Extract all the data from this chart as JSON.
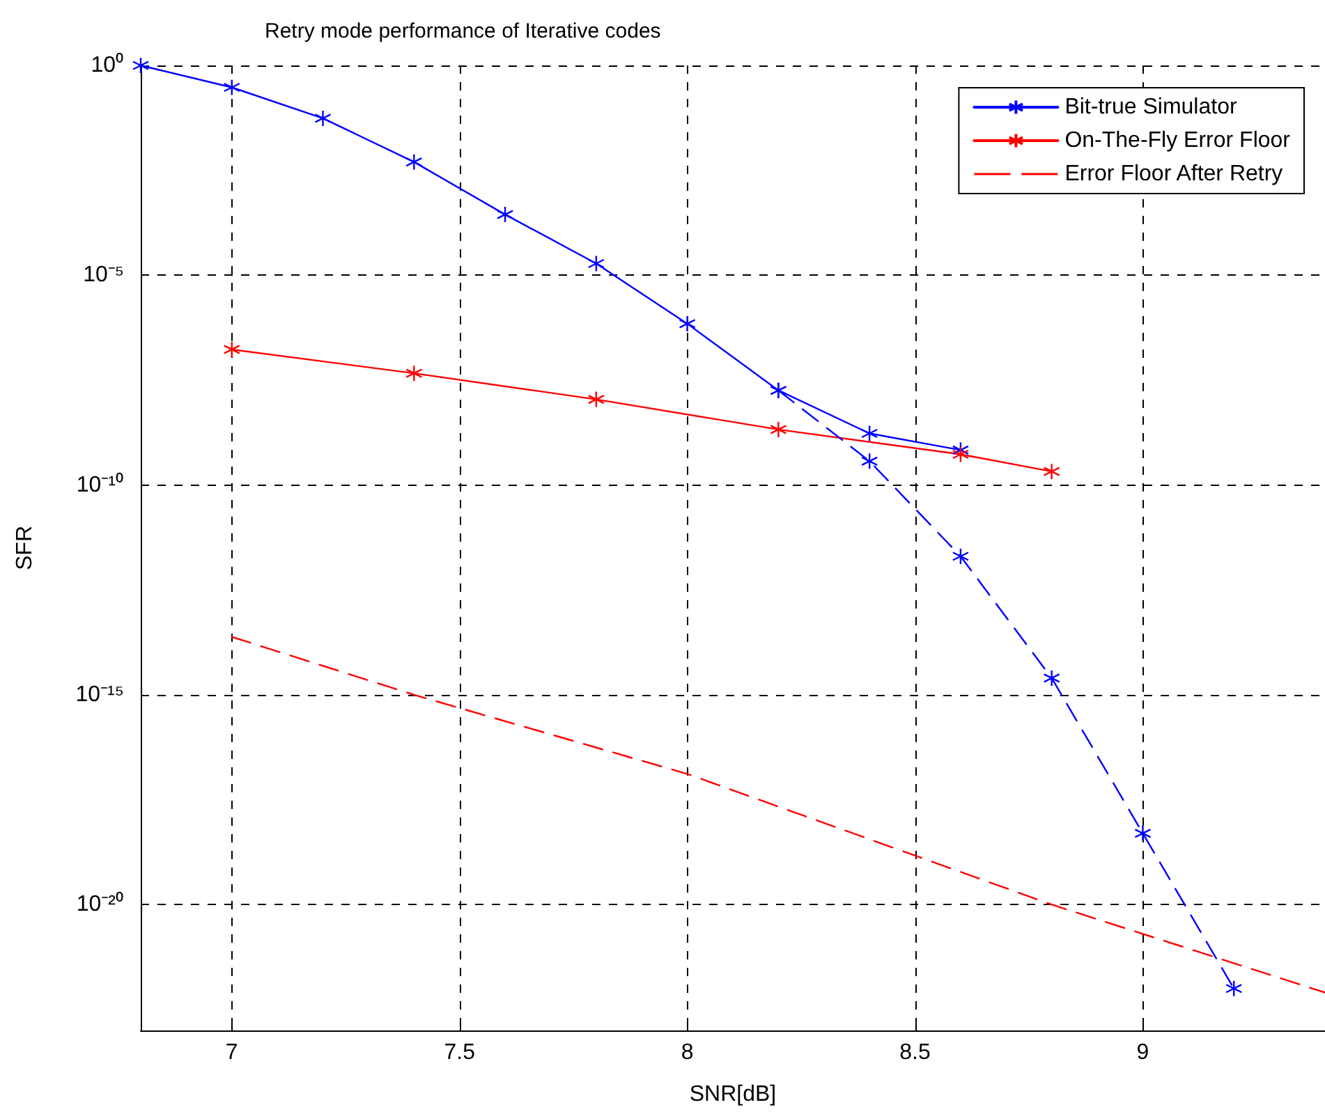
{
  "chart_data": {
    "type": "line",
    "title": "Retry mode performance of Iterative codes",
    "xlabel": "SNR[dB]",
    "ylabel": "SFR",
    "log": "y",
    "grid": true,
    "legend": "top right",
    "marker": "cross",
    "xlim": [
      6.8,
      9.4
    ],
    "xticks": [
      7,
      7.5,
      8,
      8.5,
      9
    ],
    "ylim": [
      1e-23,
      1
    ],
    "yticks": [
      {
        "value": 1,
        "label": "10⁰"
      },
      {
        "value": 1e-05,
        "label": "10⁻⁵"
      },
      {
        "value": 1e-10,
        "label": "10⁻¹⁰"
      },
      {
        "value": 1e-15,
        "label": "10⁻¹⁵"
      },
      {
        "value": 1e-20,
        "label": "10⁻²⁰"
      }
    ],
    "series": [
      {
        "name": "Bit-true Simulator",
        "color": "#0000ff",
        "x": [
          6.8,
          7.0,
          7.2,
          7.4,
          7.6,
          7.8,
          8.0,
          8.2,
          8.4,
          8.6
        ],
        "values": [
          1,
          0.3,
          0.055,
          0.005,
          0.00028,
          1.9e-05,
          7e-07,
          1.8e-08,
          1.7e-09,
          6.8e-10
        ]
      },
      {
        "name": "On-The-Fly Error Floor",
        "color": "#ff0000",
        "x": [
          7.0,
          7.4,
          7.8,
          8.2,
          8.6,
          8.8
        ],
        "values": [
          1.7e-07,
          4.6e-08,
          1.1e-08,
          2.1e-09,
          5.4e-10,
          2.1e-10
        ]
      },
      {
        "name": "Error Floor After Retry",
        "color": "#ff0000",
        "marker": "none",
        "line_style": "dashed",
        "x": [
          7.0,
          7.4,
          8.0,
          8.8,
          9.4
        ],
        "values": [
          2.4e-14,
          1e-15,
          1.3e-17,
          1e-20,
          8e-23
        ]
      },
      {
        "color": "#0000ff",
        "line_style": "dashed",
        "x": [
          8.2,
          8.4,
          8.6,
          8.8,
          9.0,
          9.2
        ],
        "values": [
          1.8e-08,
          3.7e-10,
          2e-12,
          2.5e-15,
          5e-19,
          1e-22
        ]
      }
    ]
  }
}
